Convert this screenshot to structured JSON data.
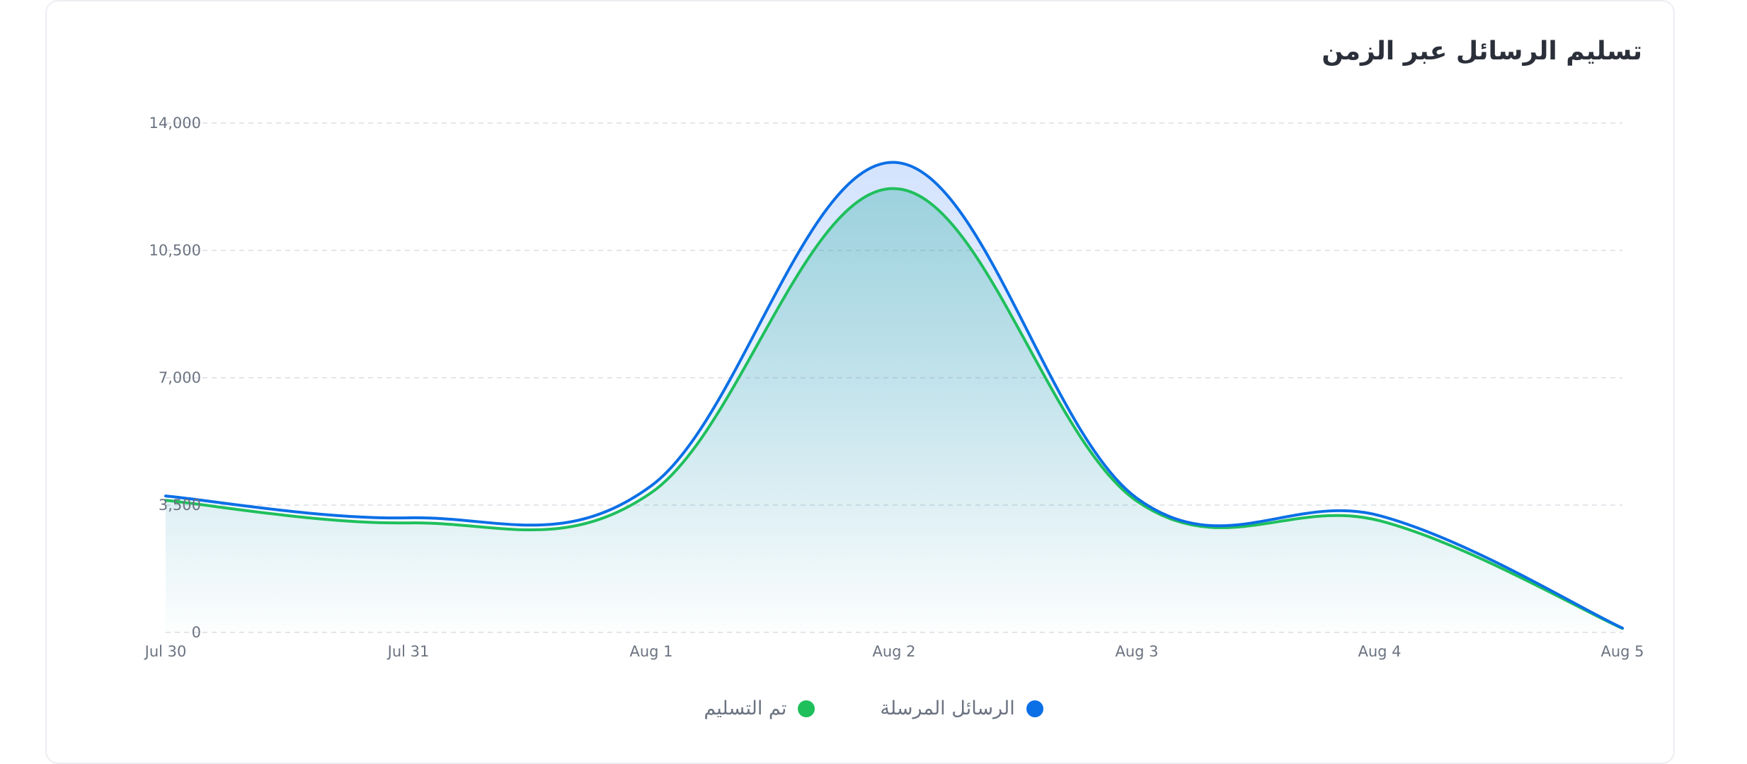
{
  "chart_data": {
    "type": "area",
    "title": "تسليم الرسائل عبر الزمن",
    "xlabel": "",
    "ylabel": "",
    "categories": [
      "Jul 30",
      "Jul 31",
      "Aug 1",
      "Aug 2",
      "Aug 3",
      "Aug 4",
      "Aug 5"
    ],
    "yticks": [
      "0",
      "3,500",
      "7,000",
      "10,500",
      "14,000"
    ],
    "ylim": [
      0,
      14000
    ],
    "grid": true,
    "legend_position": "bottom",
    "series": [
      {
        "name": "الرسائل المرسلة",
        "color": "#0b6fe6",
        "values": [
          3750,
          3150,
          4030,
          12920,
          3690,
          3210,
          120
        ]
      },
      {
        "name": "تم التسليم",
        "color": "#1fbf5c",
        "values": [
          3630,
          3010,
          3840,
          12200,
          3610,
          3070,
          110
        ]
      }
    ]
  }
}
